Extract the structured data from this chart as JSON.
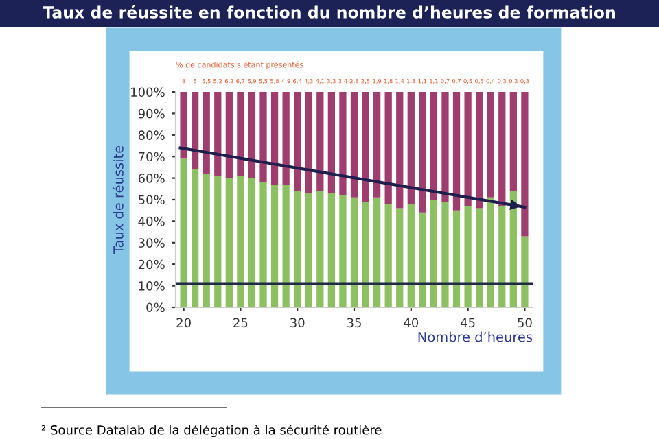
{
  "chart_data": {
    "type": "bar",
    "title": "Taux de réussite en fonction du nombre d’heures de formation",
    "xlabel": "Nombre d’heures",
    "ylabel": "Taux de réussite",
    "x": [
      20,
      21,
      22,
      23,
      24,
      25,
      26,
      27,
      28,
      29,
      30,
      31,
      32,
      33,
      34,
      35,
      36,
      37,
      38,
      39,
      40,
      41,
      42,
      43,
      44,
      45,
      46,
      47,
      48,
      49,
      50
    ],
    "stacked": true,
    "series": [
      {
        "color": "#8dc063",
        "values": [
          69,
          64,
          62,
          61,
          60,
          61,
          60,
          58,
          57,
          57,
          54,
          53,
          54,
          53,
          52,
          51,
          49,
          51,
          48,
          46,
          48,
          44,
          50,
          49,
          45,
          47,
          46,
          51,
          47,
          54,
          33
        ]
      },
      {
        "color": "#9e3d6e",
        "values": [
          31,
          36,
          38,
          39,
          40,
          39,
          40,
          42,
          43,
          43,
          46,
          47,
          46,
          47,
          48,
          49,
          51,
          49,
          52,
          54,
          52,
          56,
          50,
          51,
          55,
          53,
          54,
          49,
          53,
          46,
          67
        ]
      },
      {
        "type": "line",
        "color": "#1f1f4f",
        "x": [
          19.7,
          50
        ],
        "values": [
          74,
          46.5
        ]
      }
    ],
    "xlim": [
      19.3,
      50.7
    ],
    "xticks": [
      20,
      25,
      30,
      35,
      40,
      45,
      50
    ],
    "ylim": [
      0,
      100
    ],
    "yticks": [
      {
        "value": 0,
        "label": "0%"
      },
      {
        "value": 10,
        "label": "10%"
      },
      {
        "value": 20,
        "label": "20%"
      },
      {
        "value": 30,
        "label": "30%"
      },
      {
        "value": 40,
        "label": "40%"
      },
      {
        "value": 50,
        "label": "50%"
      },
      {
        "value": 60,
        "label": "60%"
      },
      {
        "value": 70,
        "label": "70%"
      },
      {
        "value": 80,
        "label": "80%"
      },
      {
        "value": 90,
        "label": "90%"
      },
      {
        "value": 100,
        "label": "100%"
      }
    ],
    "ref_lines": [
      {
        "axis": "y",
        "value": 11,
        "color": "#1f2a44"
      }
    ],
    "annotations": [
      "% de candidats s’étant présentés",
      {
        "text": "8",
        "x": 20,
        "y": 100
      },
      {
        "text": "5",
        "x": 21,
        "y": 100
      },
      {
        "text": "5,5",
        "x": 22,
        "y": 100
      },
      {
        "text": "5,2",
        "x": 23,
        "y": 100
      },
      {
        "text": "6,2",
        "x": 24,
        "y": 100
      },
      {
        "text": "6,7",
        "x": 25,
        "y": 100
      },
      {
        "text": "6,9",
        "x": 26,
        "y": 100
      },
      {
        "text": "5,5",
        "x": 27,
        "y": 100
      },
      {
        "text": "5,8",
        "x": 28,
        "y": 100
      },
      {
        "text": "4,9",
        "x": 29,
        "y": 100
      },
      {
        "text": "6,4",
        "x": 30,
        "y": 100
      },
      {
        "text": "4,3",
        "x": 31,
        "y": 100
      },
      {
        "text": "4,1",
        "x": 32,
        "y": 100
      },
      {
        "text": "3,3",
        "x": 33,
        "y": 100
      },
      {
        "text": "3,4",
        "x": 34,
        "y": 100
      },
      {
        "text": "2,8",
        "x": 35,
        "y": 100
      },
      {
        "text": "2,5",
        "x": 36,
        "y": 100
      },
      {
        "text": "1,9",
        "x": 37,
        "y": 100
      },
      {
        "text": "1,8",
        "x": 38,
        "y": 100
      },
      {
        "text": "1,4",
        "x": 39,
        "y": 100
      },
      {
        "text": "1,3",
        "x": 40,
        "y": 100
      },
      {
        "text": "1,1",
        "x": 41,
        "y": 100
      },
      {
        "text": "1,1",
        "x": 42,
        "y": 100
      },
      {
        "text": "0,7",
        "x": 43,
        "y": 100
      },
      {
        "text": "0,7",
        "x": 44,
        "y": 100
      },
      {
        "text": "0,5",
        "x": 45,
        "y": 100
      },
      {
        "text": "0,5",
        "x": 46,
        "y": 100
      },
      {
        "text": "0,4",
        "x": 47,
        "y": 100
      },
      {
        "text": "0,3",
        "x": 48,
        "y": 100
      },
      {
        "text": "0,3",
        "x": 49,
        "y": 100
      },
      {
        "text": "0,3",
        "x": 50,
        "y": 100
      },
      "² Source Datalab de la délégation à la sécurité routière"
    ]
  }
}
